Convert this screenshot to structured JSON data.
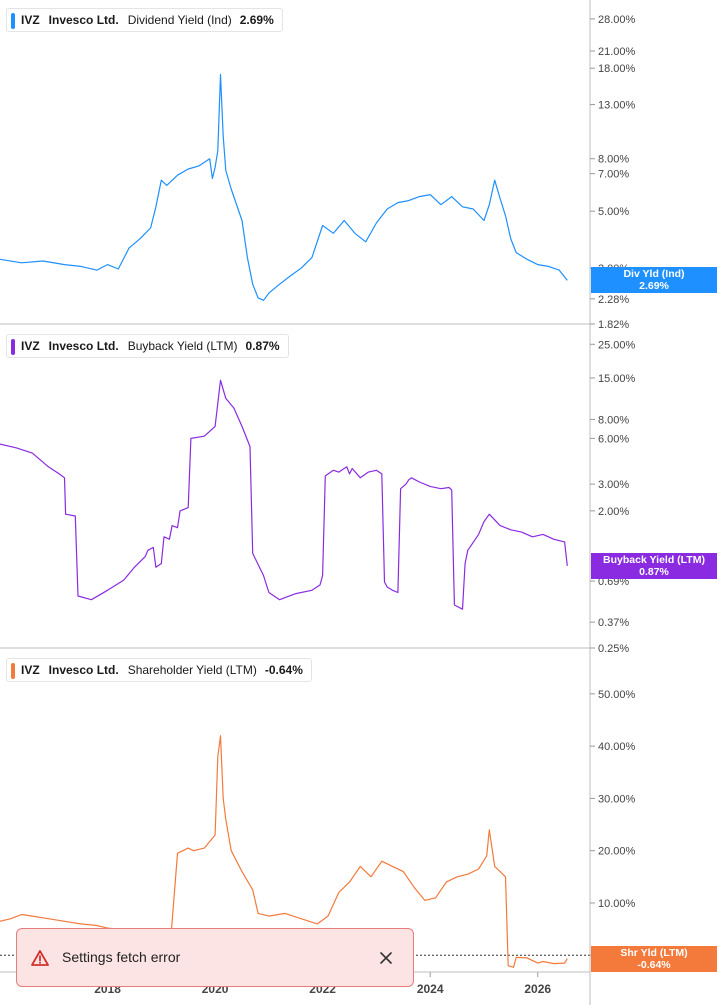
{
  "toast": {
    "message": "Settings fetch error",
    "icon": "warning-icon",
    "close_icon": "close-icon"
  },
  "colors": {
    "dividend": "#1e90ff",
    "buyback": "#8a2be2",
    "shareholder": "#f47a3c",
    "grid": "#d8d8d8"
  },
  "chart_data": [
    {
      "type": "line",
      "legend": {
        "ticker": "IVZ",
        "company": "Invesco Ltd.",
        "metric": "Dividend Yield (Ind)",
        "value": "2.69%"
      },
      "tag": {
        "label": "Div Yld (Ind)",
        "value": "2.69%"
      },
      "scale": "log",
      "ylim": [
        1.82,
        32
      ],
      "y_ticks": [
        {
          "v": 28,
          "label": "28.00%"
        },
        {
          "v": 21,
          "label": "21.00%"
        },
        {
          "v": 18,
          "label": "18.00%"
        },
        {
          "v": 13,
          "label": "13.00%"
        },
        {
          "v": 8,
          "label": "8.00%"
        },
        {
          "v": 7,
          "label": "7.00%"
        },
        {
          "v": 5,
          "label": "5.00%"
        },
        {
          "v": 3,
          "label": "3.00%"
        },
        {
          "v": 2.28,
          "label": "2.28%"
        },
        {
          "v": 1.82,
          "label": "1.82%"
        }
      ],
      "series": [
        {
          "x": [
            2016.0,
            2016.4,
            2016.8,
            2017.2,
            2017.5,
            2017.8,
            2018.0,
            2018.2,
            2018.4,
            2018.6,
            2018.8,
            2018.9,
            2019.0,
            2019.1,
            2019.3,
            2019.5,
            2019.7,
            2019.9,
            2019.95,
            2020.0,
            2020.05,
            2020.1,
            2020.15,
            2020.2,
            2020.3,
            2020.5,
            2020.6,
            2020.7,
            2020.8,
            2020.9,
            2021.0,
            2021.2,
            2021.4,
            2021.6,
            2021.8,
            2022.0,
            2022.2,
            2022.4,
            2022.6,
            2022.8,
            2023.0,
            2023.2,
            2023.4,
            2023.6,
            2023.8,
            2024.0,
            2024.2,
            2024.4,
            2024.6,
            2024.8,
            2025.0,
            2025.1,
            2025.2,
            2025.3,
            2025.4,
            2025.5,
            2025.6,
            2025.8,
            2026.0,
            2026.2,
            2026.4,
            2026.55
          ],
          "y": [
            3.25,
            3.15,
            3.2,
            3.1,
            3.05,
            2.95,
            3.1,
            2.98,
            3.6,
            3.9,
            4.3,
            5.2,
            6.6,
            6.3,
            6.9,
            7.3,
            7.5,
            8.0,
            6.7,
            7.4,
            8.6,
            17.0,
            9.8,
            7.2,
            6.1,
            4.6,
            3.3,
            2.6,
            2.3,
            2.25,
            2.4,
            2.6,
            2.8,
            3.0,
            3.3,
            4.4,
            4.1,
            4.6,
            4.1,
            3.8,
            4.5,
            5.1,
            5.4,
            5.5,
            5.7,
            5.8,
            5.3,
            5.7,
            5.2,
            5.1,
            4.6,
            5.3,
            6.6,
            5.6,
            4.8,
            3.9,
            3.45,
            3.25,
            3.1,
            3.05,
            2.95,
            2.69
          ]
        }
      ]
    },
    {
      "type": "line",
      "legend": {
        "ticker": "IVZ",
        "company": "Invesco Ltd.",
        "metric": "Buyback Yield (LTM)",
        "value": "0.87%"
      },
      "tag": {
        "label": "Buyback Yield (LTM)",
        "value": "0.87%"
      },
      "scale": "log",
      "ylim": [
        0.25,
        32
      ],
      "y_ticks": [
        {
          "v": 25,
          "label": "25.00%"
        },
        {
          "v": 15,
          "label": "15.00%"
        },
        {
          "v": 8,
          "label": "8.00%"
        },
        {
          "v": 6,
          "label": "6.00%"
        },
        {
          "v": 3,
          "label": "3.00%"
        },
        {
          "v": 2,
          "label": "2.00%"
        },
        {
          "v": 0.69,
          "label": "0.69%"
        },
        {
          "v": 0.37,
          "label": "0.37%"
        },
        {
          "v": 0.25,
          "label": "0.25%"
        }
      ],
      "series": [
        {
          "x": [
            2016.0,
            2016.3,
            2016.6,
            2016.9,
            2017.1,
            2017.2,
            2017.22,
            2017.4,
            2017.45,
            2017.7,
            2018.0,
            2018.3,
            2018.5,
            2018.7,
            2018.75,
            2018.85,
            2018.9,
            2019.0,
            2019.05,
            2019.15,
            2019.2,
            2019.3,
            2019.35,
            2019.5,
            2019.55,
            2019.8,
            2020.0,
            2020.1,
            2020.2,
            2020.35,
            2020.5,
            2020.55,
            2020.65,
            2020.7,
            2020.9,
            2021.0,
            2021.2,
            2021.5,
            2021.8,
            2021.95,
            2022.0,
            2022.05,
            2022.2,
            2022.3,
            2022.45,
            2022.5,
            2022.55,
            2022.7,
            2022.85,
            2023.0,
            2023.1,
            2023.15,
            2023.2,
            2023.3,
            2023.4,
            2023.45,
            2023.55,
            2023.6,
            2023.65,
            2023.8,
            2024.0,
            2024.2,
            2024.35,
            2024.4,
            2024.45,
            2024.6,
            2024.65,
            2024.7,
            2024.9,
            2025.0,
            2025.1,
            2025.3,
            2025.5,
            2025.7,
            2025.9,
            2026.1,
            2026.3,
            2026.5,
            2026.55
          ],
          "y": [
            5.5,
            5.2,
            4.8,
            3.9,
            3.5,
            3.3,
            1.9,
            1.85,
            0.55,
            0.52,
            0.6,
            0.7,
            0.85,
            1.0,
            1.1,
            1.15,
            0.85,
            0.9,
            1.35,
            1.3,
            1.6,
            1.55,
            2.0,
            2.1,
            6.0,
            6.2,
            7.2,
            14.5,
            11.0,
            9.5,
            7.2,
            6.5,
            5.3,
            1.05,
            0.75,
            0.58,
            0.52,
            0.57,
            0.6,
            0.65,
            0.75,
            3.4,
            3.7,
            3.6,
            3.9,
            3.5,
            3.8,
            3.3,
            3.6,
            3.7,
            3.5,
            0.68,
            0.63,
            0.6,
            0.58,
            2.8,
            3.0,
            3.2,
            3.3,
            3.1,
            2.9,
            2.8,
            2.85,
            2.75,
            0.48,
            0.45,
            0.9,
            1.1,
            1.4,
            1.7,
            1.9,
            1.6,
            1.5,
            1.45,
            1.35,
            1.4,
            1.3,
            1.25,
            0.87
          ]
        }
      ]
    },
    {
      "type": "line",
      "legend": {
        "ticker": "IVZ",
        "company": "Invesco Ltd.",
        "metric": "Shareholder Yield (LTM)",
        "value": "-0.64%"
      },
      "tag": {
        "label": "Shr Yld (LTM)",
        "value": "-0.64%"
      },
      "scale": "linear",
      "ylim": [
        -3.2,
        58
      ],
      "y_ticks": [
        {
          "v": 50,
          "label": "50.00%"
        },
        {
          "v": 40,
          "label": "40.00%"
        },
        {
          "v": 30,
          "label": "30.00%"
        },
        {
          "v": 20,
          "label": "20.00%"
        },
        {
          "v": 10,
          "label": "10.00%"
        },
        {
          "v": 0,
          "label": "0.00%"
        }
      ],
      "zero_line": 0,
      "x_ticks": [
        {
          "v": 2018,
          "label": "2018"
        },
        {
          "v": 2020,
          "label": "2020"
        },
        {
          "v": 2022,
          "label": "2022"
        },
        {
          "v": 2024,
          "label": "2024"
        },
        {
          "v": 2026,
          "label": "2026"
        }
      ],
      "x_range": [
        2016.0,
        2026.6
      ],
      "series": [
        {
          "x": [
            2016.0,
            2016.2,
            2016.4,
            2016.6,
            2016.9,
            2017.2,
            2017.5,
            2017.8,
            2018.0,
            2018.2,
            2018.25,
            2018.5,
            2018.55,
            2018.9,
            2019.0,
            2019.05,
            2019.15,
            2019.3,
            2019.5,
            2019.6,
            2019.8,
            2020.0,
            2020.05,
            2020.1,
            2020.15,
            2020.2,
            2020.3,
            2020.5,
            2020.7,
            2020.8,
            2021.0,
            2021.3,
            2021.6,
            2021.9,
            2022.1,
            2022.3,
            2022.5,
            2022.7,
            2022.9,
            2023.1,
            2023.3,
            2023.5,
            2023.7,
            2023.9,
            2024.1,
            2024.3,
            2024.5,
            2024.7,
            2024.9,
            2025.05,
            2025.1,
            2025.2,
            2025.3,
            2025.4,
            2025.45,
            2025.55,
            2025.6,
            2025.8,
            2026.0,
            2026.1,
            2026.3,
            2026.5,
            2026.55
          ],
          "y": [
            6.5,
            7.0,
            7.8,
            7.5,
            7.0,
            6.5,
            6.0,
            5.7,
            5.2,
            5.0,
            -0.5,
            -0.6,
            2.8,
            2.6,
            3.0,
            -0.3,
            -0.2,
            19.5,
            20.5,
            20.0,
            20.5,
            23.0,
            38.0,
            42.0,
            30.0,
            26.0,
            20.0,
            16.0,
            12.5,
            8.0,
            7.5,
            8.0,
            7.0,
            6.0,
            7.5,
            12.0,
            14.0,
            17.0,
            15.0,
            18.0,
            17.0,
            16.0,
            13.0,
            10.5,
            11.0,
            14.0,
            15.0,
            15.5,
            16.5,
            19.0,
            24.0,
            17.0,
            16.0,
            15.0,
            -2.0,
            -2.3,
            -0.4,
            -0.5,
            -1.5,
            -1.2,
            -1.6,
            -1.5,
            -0.64
          ]
        }
      ]
    }
  ]
}
